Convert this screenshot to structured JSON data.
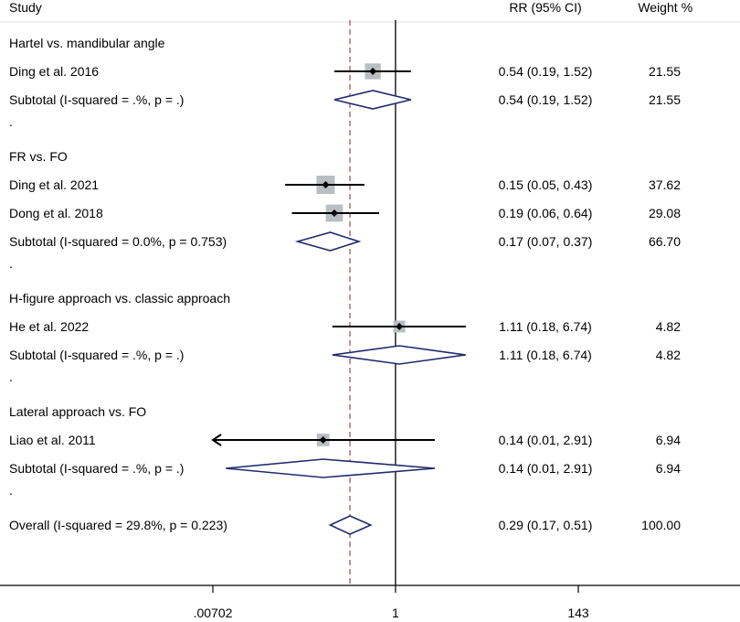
{
  "chart_data": {
    "type": "forest",
    "header": {
      "study": "Study",
      "estimate": "RR (95% CI)",
      "weight": "Weight",
      "weight_unit": "%"
    },
    "x_axis": {
      "scale": "log",
      "range": [
        0.00702,
        143
      ],
      "ticks": [
        ".00702",
        "1",
        "143"
      ]
    },
    "null_line": 1,
    "overall_line": 0.29,
    "rows": [
      {
        "kind": "group",
        "label": "Hartel vs. mandibular angle"
      },
      {
        "kind": "study",
        "label": "Ding et al. 2016",
        "rr": 0.54,
        "lo": 0.19,
        "hi": 1.52,
        "ci_text": "0.54 (0.19, 1.52)",
        "weight": 21.55,
        "weight_text": "21.55"
      },
      {
        "kind": "subtotal",
        "label": "Subtotal  (I-squared = .%, p = .)",
        "rr": 0.54,
        "lo": 0.19,
        "hi": 1.52,
        "ci_text": "0.54 (0.19, 1.52)",
        "weight_text": "21.55"
      },
      {
        "kind": "dot",
        "label": "."
      },
      {
        "kind": "group",
        "label": "FR vs. FO"
      },
      {
        "kind": "study",
        "label": "Ding et al. 2021",
        "rr": 0.15,
        "lo": 0.05,
        "hi": 0.43,
        "ci_text": "0.15 (0.05, 0.43)",
        "weight": 37.62,
        "weight_text": "37.62"
      },
      {
        "kind": "study",
        "label": "Dong et al. 2018",
        "rr": 0.19,
        "lo": 0.06,
        "hi": 0.64,
        "ci_text": "0.19 (0.06, 0.64)",
        "weight": 29.08,
        "weight_text": "29.08"
      },
      {
        "kind": "subtotal",
        "label": "Subtotal  (I-squared = 0.0%, p = 0.753)",
        "rr": 0.17,
        "lo": 0.07,
        "hi": 0.37,
        "ci_text": "0.17 (0.07, 0.37)",
        "weight_text": "66.70"
      },
      {
        "kind": "dot",
        "label": "."
      },
      {
        "kind": "group",
        "label": "H-figure approach vs. classic approach"
      },
      {
        "kind": "study",
        "label": "He et al. 2022",
        "rr": 1.11,
        "lo": 0.18,
        "hi": 6.74,
        "ci_text": "1.11 (0.18, 6.74)",
        "weight": 4.82,
        "weight_text": "4.82"
      },
      {
        "kind": "subtotal",
        "label": "Subtotal  (I-squared = .%, p = .)",
        "rr": 1.11,
        "lo": 0.18,
        "hi": 6.74,
        "ci_text": "1.11 (0.18, 6.74)",
        "weight_text": "4.82"
      },
      {
        "kind": "dot",
        "label": "."
      },
      {
        "kind": "group",
        "label": "Lateral approach vs. FO"
      },
      {
        "kind": "study",
        "label": "Liao et al. 2011",
        "rr": 0.14,
        "lo": 0.01,
        "hi": 2.91,
        "ci_text": "0.14 (0.01, 2.91)",
        "weight": 6.94,
        "weight_text": "6.94",
        "clipped_left": true
      },
      {
        "kind": "subtotal",
        "label": "Subtotal  (I-squared = .%, p = .)",
        "rr": 0.14,
        "lo": 0.01,
        "hi": 2.91,
        "ci_text": "0.14 (0.01, 2.91)",
        "weight_text": "6.94"
      },
      {
        "kind": "dot",
        "label": "."
      },
      {
        "kind": "subtotal",
        "label": "Overall  (I-squared = 29.8%, p = 0.223)",
        "rr": 0.29,
        "lo": 0.17,
        "hi": 0.51,
        "ci_text": "0.29 (0.17, 0.51)",
        "weight_text": "100.00"
      }
    ],
    "colors": {
      "diamond": "#1f2a6b",
      "box": "#b8bec2",
      "ref_line": "#a04848",
      "line": "#000000"
    }
  }
}
